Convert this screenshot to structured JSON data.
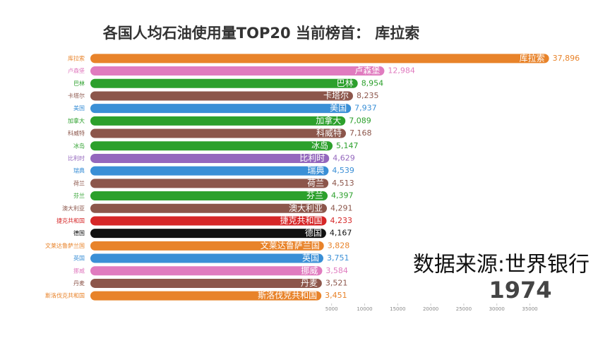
{
  "chart_data": {
    "type": "bar",
    "orientation": "horizontal",
    "title": "各国人均石油使用量TOP20 当前榜首： 库拉索",
    "annotations": {
      "source": "数据来源:世界银行",
      "year": "1974"
    },
    "categories": [
      "库拉索",
      "卢森堡",
      "巴林",
      "卡塔尔",
      "美国",
      "加拿大",
      "科威特",
      "冰岛",
      "比利时",
      "瑞典",
      "荷兰",
      "芬兰",
      "澳大利亚",
      "捷克共和国",
      "德国",
      "文莱达鲁萨兰国",
      "英国",
      "挪威",
      "丹麦",
      "斯洛伐克共和国"
    ],
    "values": [
      37896,
      12984,
      8954,
      8235,
      7937,
      7089,
      7168,
      5147,
      4629,
      4539,
      4513,
      4397,
      4291,
      4233,
      4167,
      3828,
      3751,
      3584,
      3521,
      3451
    ],
    "value_labels": [
      "37,896",
      "12,984",
      "8,954",
      "8,235",
      "7,937",
      "7,089",
      "7,168",
      "5,147",
      "4,629",
      "4,539",
      "4,513",
      "4,397",
      "4,291",
      "4,233",
      "4,167",
      "3,828",
      "3,751",
      "3,584",
      "3,521",
      "3,451"
    ],
    "colors": [
      "#e8832a",
      "#e07bbf",
      "#2ca02c",
      "#8c564b",
      "#3a8fd6",
      "#2ca02c",
      "#8c564b",
      "#2ca02c",
      "#9467bd",
      "#3a8fd6",
      "#8c564b",
      "#2ca02c",
      "#8c564b",
      "#d62728",
      "#111111",
      "#e8832a",
      "#3a8fd6",
      "#e07bbf",
      "#8c564b",
      "#e8832a"
    ],
    "xlim": [
      -31500,
      40500
    ],
    "xticks": [
      5000,
      10000,
      15000,
      20000,
      25000,
      30000,
      35000
    ]
  }
}
